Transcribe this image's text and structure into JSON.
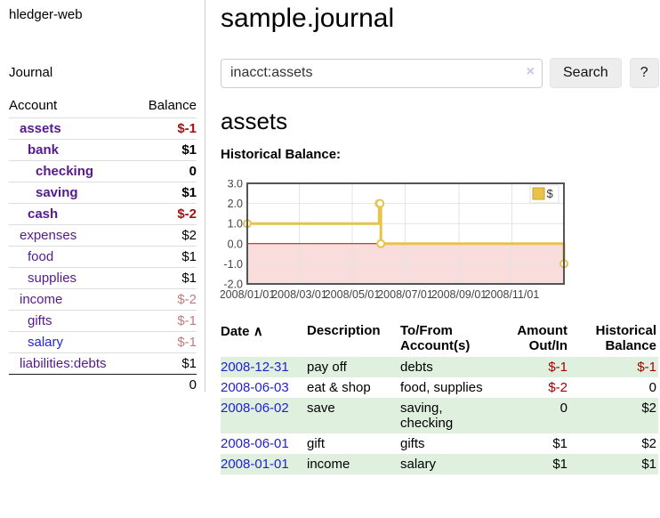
{
  "colors": {
    "link_purple": "#551a8b",
    "link_blue": "#2323dd",
    "negative_strong": "#a11212",
    "negative_soft": "#c17d7d",
    "negative": "#a40000",
    "row_stripe_green": "#dff0df",
    "date_link_blue": "#2222cc"
  },
  "sidebar": {
    "app_title": "hledger-web",
    "journal_link": "Journal",
    "header": {
      "account": "Account",
      "balance": "Balance"
    },
    "accounts": [
      {
        "name": "assets",
        "indent": 1,
        "bold": true,
        "balance": "$-1"
      },
      {
        "name": "bank",
        "indent": 2,
        "bold": true,
        "balance": "$1"
      },
      {
        "name": "checking",
        "indent": 3,
        "bold": true,
        "balance": "0"
      },
      {
        "name": "saving",
        "indent": 3,
        "bold": true,
        "balance": "$1"
      },
      {
        "name": "cash",
        "indent": 2,
        "bold": true,
        "balance": "$-2"
      },
      {
        "name": "expenses",
        "indent": 1,
        "bold": false,
        "balance": "$2"
      },
      {
        "name": "food",
        "indent": 2,
        "bold": false,
        "balance": "$1"
      },
      {
        "name": "supplies",
        "indent": 2,
        "bold": false,
        "balance": "$1"
      },
      {
        "name": "income",
        "indent": 1,
        "bold": false,
        "balance": "$-2"
      },
      {
        "name": "gifts",
        "indent": 2,
        "bold": false,
        "balance": "$-1"
      },
      {
        "name": "salary",
        "indent": 2,
        "bold": false,
        "balance": "$-1",
        "blue": true
      },
      {
        "name": "liabilities:debts",
        "indent": 1,
        "bold": false,
        "balance": "$1"
      }
    ],
    "total": "0"
  },
  "main": {
    "title": "sample.journal",
    "search": {
      "value": "inacct:assets",
      "clear_icon": "×",
      "button_label": "Search",
      "help_label": "?"
    },
    "account_heading": "assets",
    "chart_label": "Historical Balance:"
  },
  "chart_data": {
    "type": "line",
    "style": "step",
    "title": "Historical Balance of assets",
    "x_domain": [
      "2008-01-01",
      "2008-12-31"
    ],
    "ylim": [
      -2.0,
      3.0
    ],
    "yticks": [
      "3.0",
      "2.0",
      "1.0",
      "0.0",
      "-1.0",
      "-2.0"
    ],
    "xticks": [
      "2008/01/01",
      "2008/03/01",
      "2008/05/01",
      "2008/07/01",
      "2008/09/01",
      "2008/11/01"
    ],
    "grid": true,
    "legend_position": "top-right",
    "series": [
      {
        "name": "$",
        "points": [
          [
            "2008-01-01",
            1
          ],
          [
            "2008-06-01",
            2
          ],
          [
            "2008-06-02",
            2
          ],
          [
            "2008-06-03",
            0
          ],
          [
            "2008-12-31",
            -1
          ]
        ]
      }
    ],
    "colors": {
      "line": "#e8c34c",
      "legend_border": "#c9a227",
      "marker_fill": "#ffffff",
      "negative_region": "#f9dcdc",
      "zero_line": "#8b1a1a",
      "plot_border": "#555555",
      "grid": "#e4e4e4",
      "tick_text": "#444444"
    }
  },
  "register": {
    "sort_icon": "∧",
    "columns": [
      "Date",
      "Description",
      "To/From Account(s)",
      "Amount Out/In",
      "Historical Balance"
    ],
    "rows": [
      {
        "date": "2008-12-31",
        "description": "pay off",
        "accounts": "debts",
        "amount": "$-1",
        "balance": "$-1"
      },
      {
        "date": "2008-06-03",
        "description": "eat & shop",
        "accounts": "food, supplies",
        "amount": "$-2",
        "balance": "0"
      },
      {
        "date": "2008-06-02",
        "description": "save",
        "accounts": "saving, checking",
        "amount": "0",
        "balance": "$2"
      },
      {
        "date": "2008-06-01",
        "description": "gift",
        "accounts": "gifts",
        "amount": "$1",
        "balance": "$2"
      },
      {
        "date": "2008-01-01",
        "description": "income",
        "accounts": "salary",
        "amount": "$1",
        "balance": "$1"
      }
    ]
  }
}
